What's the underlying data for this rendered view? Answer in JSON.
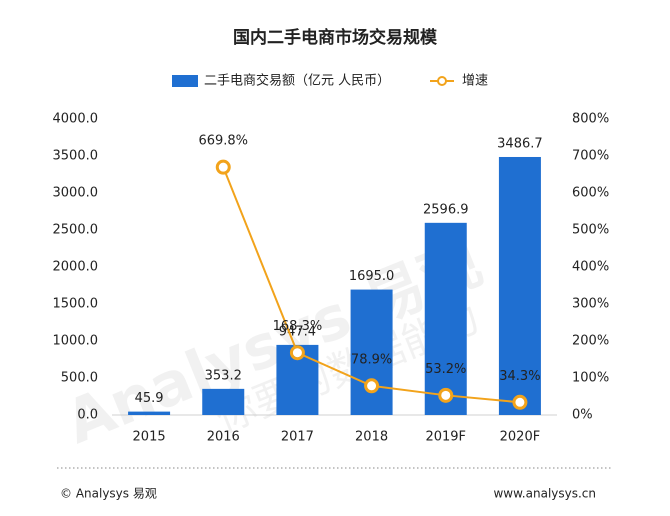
{
  "chart_data": {
    "type": "bar-line",
    "title": "国内二手电商市场交易规模",
    "categories": [
      "2015",
      "2016",
      "2017",
      "2018",
      "2019F",
      "2020F"
    ],
    "series": [
      {
        "name": "二手电商交易额（亿元 人民币）",
        "type": "bar",
        "color": "#1f6fd1",
        "values": [
          45.9,
          353.2,
          947.4,
          1695.0,
          2596.9,
          3486.7
        ],
        "value_labels": [
          "45.9",
          "353.2",
          "947.4",
          "1695.0",
          "2596.9",
          "3486.7"
        ]
      },
      {
        "name": "增速",
        "type": "line",
        "axis": "y2",
        "color": "#f2a31b",
        "values": [
          null,
          669.8,
          168.3,
          78.9,
          53.2,
          34.3
        ],
        "value_labels": [
          null,
          "669.8%",
          "168.3%",
          "78.9%",
          "53.2%",
          "34.3%"
        ]
      }
    ],
    "ylim": [
      0,
      4000
    ],
    "yticks": [
      {
        "value": 0,
        "label": "0.0"
      },
      {
        "value": 500,
        "label": "500.0"
      },
      {
        "value": 1000,
        "label": "1000.0"
      },
      {
        "value": 1500,
        "label": "1500.0"
      },
      {
        "value": 2000,
        "label": "2000.0"
      },
      {
        "value": 2500,
        "label": "2500.0"
      },
      {
        "value": 3000,
        "label": "3000.0"
      },
      {
        "value": 3500,
        "label": "3500.0"
      },
      {
        "value": 4000,
        "label": "4000.0"
      }
    ],
    "y2lim": [
      0,
      800
    ],
    "y2ticks": [
      {
        "value": 0,
        "label": "0%"
      },
      {
        "value": 100,
        "label": "100%"
      },
      {
        "value": 200,
        "label": "200%"
      },
      {
        "value": 300,
        "label": "300%"
      },
      {
        "value": 400,
        "label": "400%"
      },
      {
        "value": 500,
        "label": "500%"
      },
      {
        "value": 600,
        "label": "600%"
      },
      {
        "value": 700,
        "label": "700%"
      },
      {
        "value": 800,
        "label": "800%"
      }
    ],
    "legend": "top",
    "watermark": [
      "Analysys 易观",
      "你要的数据能力"
    ],
    "source": "© Analysys 易观",
    "website": "www.analysys.cn"
  }
}
